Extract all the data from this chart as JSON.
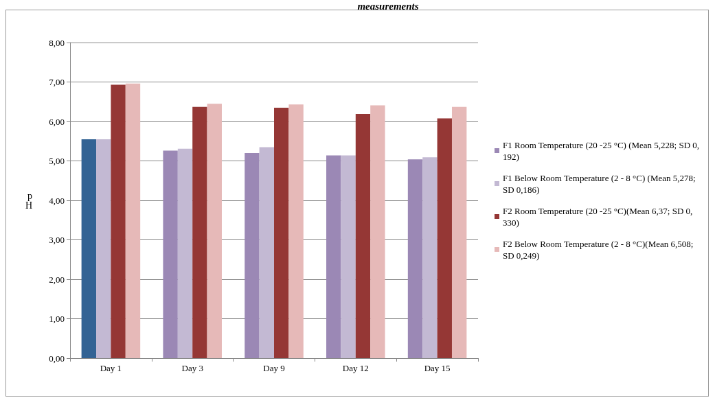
{
  "chart_data": {
    "type": "bar",
    "title": "measurements",
    "ylabel": "pH",
    "categories": [
      "Day 1",
      "Day 3",
      "Day 9",
      "Day 12",
      "Day 15"
    ],
    "series": [
      {
        "name": "F1 Room Temperature (20 -25 °C) (Mean 5,228; SD 0,192)",
        "color": "#9b88b5",
        "colors": [
          "#336394",
          "#9b88b5",
          "#9b88b5",
          "#9b88b5",
          "#9b88b5"
        ],
        "values": [
          5.55,
          5.26,
          5.2,
          5.14,
          5.04
        ]
      },
      {
        "name": "F1 Below Room Temperature (2 - 8 °C) (Mean 5,278; SD 0,186)",
        "color": "#c3b9d3",
        "values": [
          5.55,
          5.31,
          5.35,
          5.14,
          5.09
        ]
      },
      {
        "name": "F2 Room Temperature (20 -25 °C)(Mean 6,37; SD 0,330)",
        "color": "#953735",
        "values": [
          6.93,
          6.37,
          6.35,
          6.19,
          6.08
        ]
      },
      {
        "name": "F2 Below Room Temperature (2 - 8 °C)(Mean 6,508; SD 0,249)",
        "color": "#e6b9b8",
        "values": [
          6.96,
          6.45,
          6.43,
          6.41,
          6.37
        ]
      }
    ],
    "ylim": [
      0,
      8
    ],
    "yticks": [
      {
        "value": 0,
        "label": "0,00"
      },
      {
        "value": 1,
        "label": "1,00"
      },
      {
        "value": 2,
        "label": "2,00"
      },
      {
        "value": 3,
        "label": "3,00"
      },
      {
        "value": 4,
        "label": "4,00"
      },
      {
        "value": 5,
        "label": "5,00"
      },
      {
        "value": 6,
        "label": "6,00"
      },
      {
        "value": 7,
        "label": "7,00"
      },
      {
        "value": 8,
        "label": "8,00"
      }
    ],
    "grid": "y",
    "legend": "right"
  }
}
